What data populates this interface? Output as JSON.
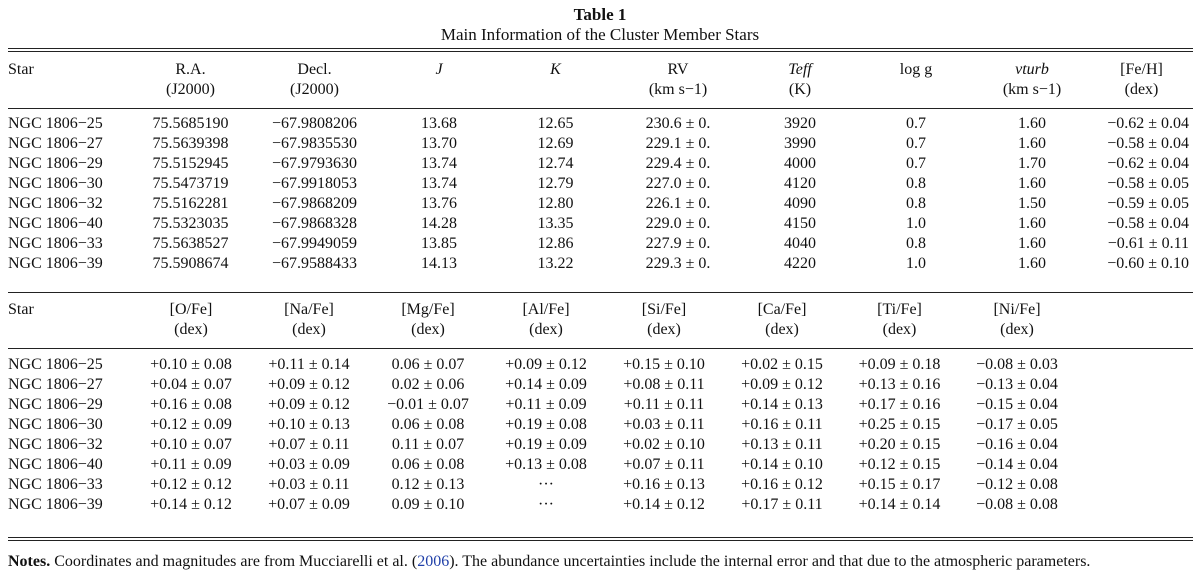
{
  "title": "Table 1",
  "subtitle": "Main Information of the Cluster Member Stars",
  "table1": {
    "headers": [
      {
        "l1": "Star",
        "l2": ""
      },
      {
        "l1": "R.A.",
        "l2": "(J2000)"
      },
      {
        "l1": "Decl.",
        "l2": "(J2000)"
      },
      {
        "l1": "J",
        "l2": ""
      },
      {
        "l1": "K",
        "l2": ""
      },
      {
        "l1": "RV",
        "l2": "(km s−1)"
      },
      {
        "l1": "Teff",
        "l2": "(K)"
      },
      {
        "l1": "log g",
        "l2": ""
      },
      {
        "l1": "vturb",
        "l2": "(km s−1)"
      },
      {
        "l1": "[Fe/H]",
        "l2": "(dex)"
      }
    ],
    "rows": [
      [
        "NGC 1806−25",
        "75.5685190",
        "−67.9808206",
        "13.68",
        "12.65",
        "230.6 ± 0.",
        "3920",
        "0.7",
        "1.60",
        "−0.62 ± 0.04"
      ],
      [
        "NGC 1806−27",
        "75.5639398",
        "−67.9835530",
        "13.70",
        "12.69",
        "229.1 ± 0.",
        "3990",
        "0.7",
        "1.60",
        "−0.58 ± 0.04"
      ],
      [
        "NGC 1806−29",
        "75.5152945",
        "−67.9793630",
        "13.74",
        "12.74",
        "229.4 ± 0.",
        "4000",
        "0.7",
        "1.70",
        "−0.62 ± 0.04"
      ],
      [
        "NGC 1806−30",
        "75.5473719",
        "−67.9918053",
        "13.74",
        "12.79",
        "227.0 ± 0.",
        "4120",
        "0.8",
        "1.60",
        "−0.58 ± 0.05"
      ],
      [
        "NGC 1806−32",
        "75.5162281",
        "−67.9868209",
        "13.76",
        "12.80",
        "226.1 ± 0.",
        "4090",
        "0.8",
        "1.50",
        "−0.59 ± 0.05"
      ],
      [
        "NGC 1806−40",
        "75.5323035",
        "−67.9868328",
        "14.28",
        "13.35",
        "229.0 ± 0.",
        "4150",
        "1.0",
        "1.60",
        "−0.58 ± 0.04"
      ],
      [
        "NGC 1806−33",
        "75.5638527",
        "−67.9949059",
        "13.85",
        "12.86",
        "227.9 ± 0.",
        "4040",
        "0.8",
        "1.60",
        "−0.61 ± 0.11"
      ],
      [
        "NGC 1806−39",
        "75.5908674",
        "−67.9588433",
        "14.13",
        "13.22",
        "229.3 ± 0.",
        "4220",
        "1.0",
        "1.60",
        "−0.60 ± 0.10"
      ]
    ]
  },
  "table2": {
    "headers": [
      {
        "l1": "Star",
        "l2": ""
      },
      {
        "l1": "[O/Fe]",
        "l2": "(dex)"
      },
      {
        "l1": "[Na/Fe]",
        "l2": "(dex)"
      },
      {
        "l1": "[Mg/Fe]",
        "l2": "(dex)"
      },
      {
        "l1": "[Al/Fe]",
        "l2": "(dex)"
      },
      {
        "l1": "[Si/Fe]",
        "l2": "(dex)"
      },
      {
        "l1": "[Ca/Fe]",
        "l2": "(dex)"
      },
      {
        "l1": "[Ti/Fe]",
        "l2": "(dex)"
      },
      {
        "l1": "[Ni/Fe]",
        "l2": "(dex)"
      }
    ],
    "rows": [
      [
        "NGC 1806−25",
        "+0.10 ± 0.08",
        "+0.11 ± 0.14",
        "0.06 ± 0.07",
        "+0.09 ± 0.12",
        "+0.15 ± 0.10",
        "+0.02 ± 0.15",
        "+0.09 ± 0.18",
        "−0.08 ± 0.03"
      ],
      [
        "NGC 1806−27",
        "+0.04 ± 0.07",
        "+0.09 ± 0.12",
        "0.02 ± 0.06",
        "+0.14 ± 0.09",
        "+0.08 ± 0.11",
        "+0.09 ± 0.12",
        "+0.13 ± 0.16",
        "−0.13 ± 0.04"
      ],
      [
        "NGC 1806−29",
        "+0.16 ± 0.08",
        "+0.09 ± 0.12",
        "−0.01 ± 0.07",
        "+0.11 ± 0.09",
        "+0.11 ± 0.11",
        "+0.14 ± 0.13",
        "+0.17 ± 0.16",
        "−0.15 ± 0.04"
      ],
      [
        "NGC 1806−30",
        "+0.12 ± 0.09",
        "+0.10 ± 0.13",
        "0.06 ± 0.08",
        "+0.19 ± 0.08",
        "+0.03 ± 0.11",
        "+0.16 ± 0.11",
        "+0.25 ± 0.15",
        "−0.17 ± 0.05"
      ],
      [
        "NGC 1806−32",
        "+0.10 ± 0.07",
        "+0.07 ± 0.11",
        "0.11 ± 0.07",
        "+0.19 ± 0.09",
        "+0.02 ± 0.10",
        "+0.13 ± 0.11",
        "+0.20 ± 0.15",
        "−0.16 ± 0.04"
      ],
      [
        "NGC 1806−40",
        "+0.11 ± 0.09",
        "+0.03 ± 0.09",
        "0.06 ± 0.08",
        "+0.13 ± 0.08",
        "+0.07 ± 0.11",
        "+0.14 ± 0.10",
        "+0.12 ± 0.15",
        "−0.14 ± 0.04"
      ],
      [
        "NGC 1806−33",
        "+0.12 ± 0.12",
        "+0.03 ± 0.11",
        "0.12 ± 0.13",
        "···",
        "+0.16 ± 0.13",
        "+0.16 ± 0.12",
        "+0.15 ± 0.17",
        "−0.12 ± 0.08"
      ],
      [
        "NGC 1806−39",
        "+0.14 ± 0.12",
        "+0.07 ± 0.09",
        "0.09 ± 0.10",
        "···",
        "+0.14 ± 0.12",
        "+0.17 ± 0.11",
        "+0.14 ± 0.14",
        "−0.08 ± 0.08"
      ]
    ]
  },
  "notes": {
    "label": "Notes.",
    "text_before": " Coordinates and magnitudes are from Mucciarelli et al. (",
    "citation": "2006",
    "text_after": "). The abundance uncertainties include the internal error and that due to the atmospheric parameters."
  }
}
